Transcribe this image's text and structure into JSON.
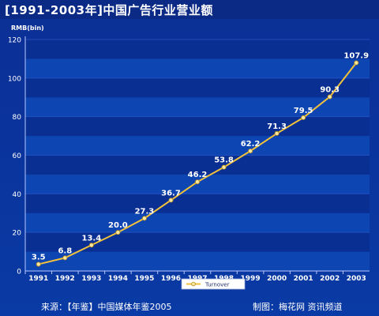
{
  "title": "[1991-2003年]中国广告行业营业额",
  "footer": {
    "source": "来源：【年鉴】中国媒体年鉴2005",
    "credit": "制图：梅花网 资讯频道"
  },
  "colors": {
    "line": "#f2c23a",
    "marker_fill": "#f6e6a0",
    "band_dark": "#0a2f93",
    "band_light": "#0d45b3",
    "axis": "#b8c8ff",
    "text": "#ffffff"
  },
  "chart_data": {
    "type": "line",
    "ylabel": "RMB(bin)",
    "xlabel": "",
    "ylim": [
      0,
      120
    ],
    "yticks": [
      0,
      20,
      40,
      60,
      80,
      100,
      120
    ],
    "grid": true,
    "legend_position": "bottom-center",
    "categories": [
      "1991",
      "1992",
      "1993",
      "1994",
      "1995",
      "1996",
      "1997",
      "1998",
      "1999",
      "2000",
      "2001",
      "2002",
      "2003"
    ],
    "series": [
      {
        "name": "Turnover",
        "values": [
          3.5,
          6.8,
          13.4,
          20.0,
          27.3,
          36.7,
          46.2,
          53.8,
          62.2,
          71.3,
          79.5,
          90.3,
          107.9
        ],
        "labels": [
          "3.5",
          "6.8",
          "13.4",
          "20.0",
          "27.3",
          "36.7",
          "46.2",
          "53.8",
          "62.2",
          "71.3",
          "79.5",
          "90.3",
          "107.9"
        ]
      }
    ]
  }
}
